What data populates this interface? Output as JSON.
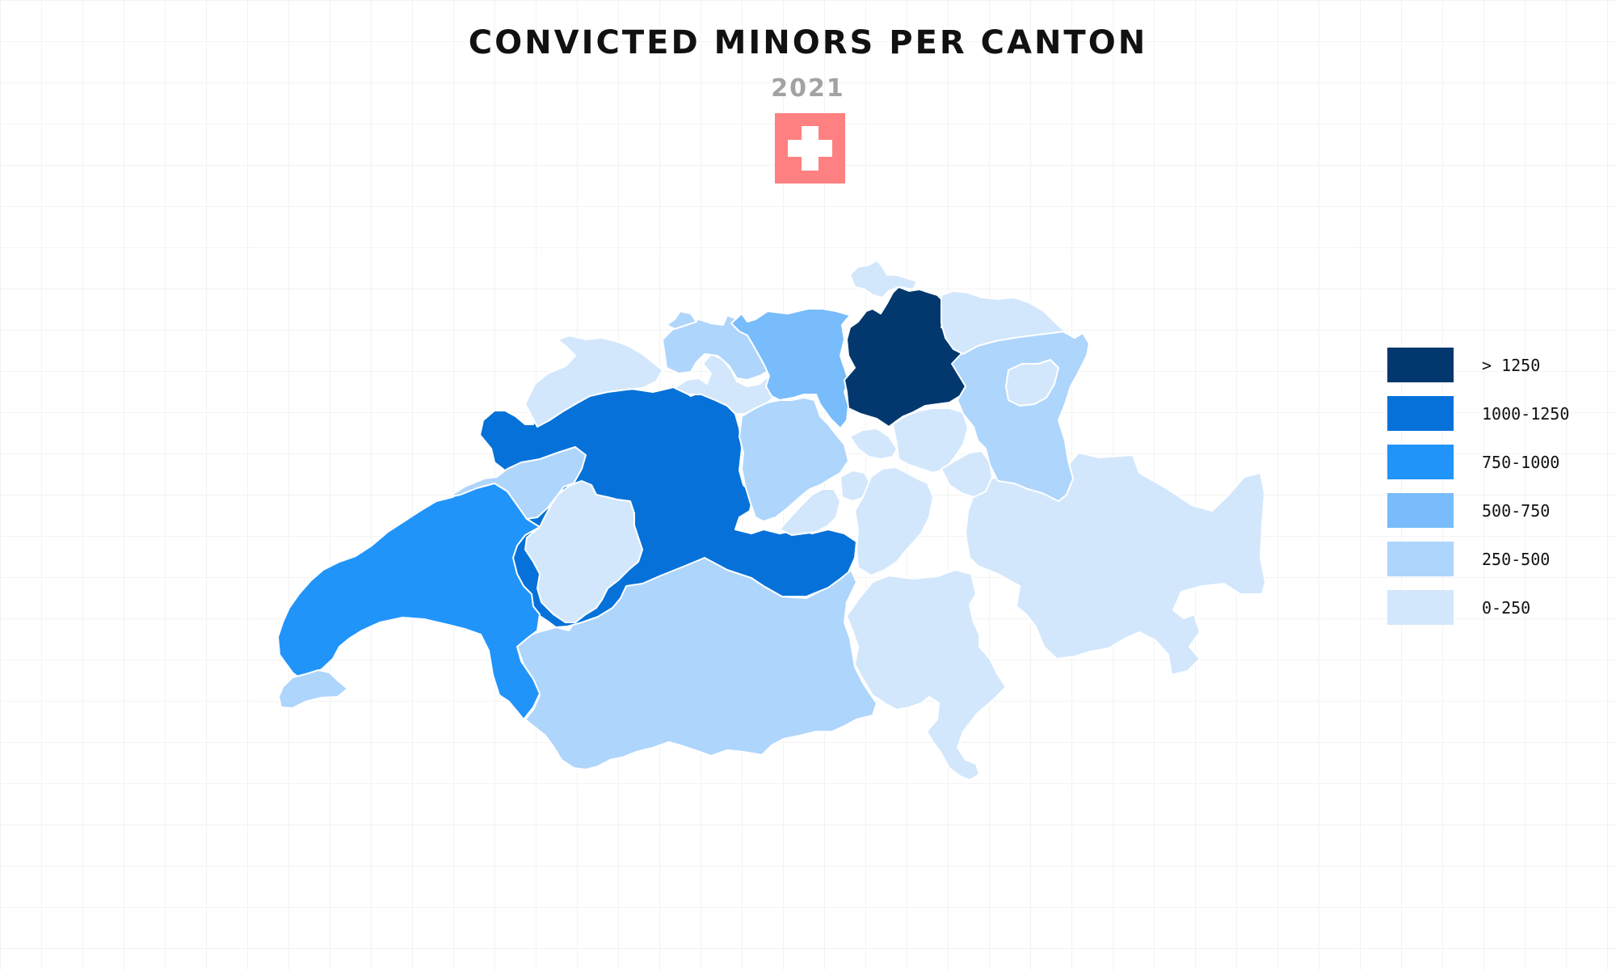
{
  "title": "CONVICTED MINORS PER CANTON",
  "subtitle": "2021",
  "flag": {
    "icon": "swiss-flag-icon",
    "color": "#ff8080",
    "cross_color": "#ffffff"
  },
  "legend": [
    {
      "label": "> 1250",
      "color": "#02386e"
    },
    {
      "label": "1000-1250",
      "color": "#0672d9"
    },
    {
      "label": "750-1000",
      "color": "#2194fa"
    },
    {
      "label": "500-750",
      "color": "#78bcfb"
    },
    {
      "label": "250-500",
      "color": "#aed5fc"
    },
    {
      "label": "0-250",
      "color": "#d2e7fc"
    }
  ],
  "regions": [
    {
      "name": "Zürich",
      "class": "> 1250"
    },
    {
      "name": "Bern",
      "class": "1000-1250"
    },
    {
      "name": "Vaud",
      "class": "750-1000"
    },
    {
      "name": "Aargau",
      "class": "500-750"
    },
    {
      "name": "Valais",
      "class": "250-500"
    },
    {
      "name": "St. Gallen",
      "class": "250-500"
    },
    {
      "name": "Neuchâtel",
      "class": "250-500"
    },
    {
      "name": "Basel-Landschaft",
      "class": "250-500"
    },
    {
      "name": "Lucerne",
      "class": "250-500"
    },
    {
      "name": "Geneva",
      "class": "250-500"
    },
    {
      "name": "Jura",
      "class": "0-250"
    },
    {
      "name": "Basel-Stadt",
      "class": "250-500"
    },
    {
      "name": "Solothurn",
      "class": "0-250"
    },
    {
      "name": "Fribourg",
      "class": "0-250"
    },
    {
      "name": "Schaffhausen",
      "class": "0-250"
    },
    {
      "name": "Thurgau",
      "class": "0-250"
    },
    {
      "name": "Appenzell",
      "class": "0-250"
    },
    {
      "name": "Zug",
      "class": "0-250"
    },
    {
      "name": "Schwyz",
      "class": "0-250"
    },
    {
      "name": "Obwalden",
      "class": "0-250"
    },
    {
      "name": "Nidwalden",
      "class": "0-250"
    },
    {
      "name": "Uri",
      "class": "0-250"
    },
    {
      "name": "Glarus",
      "class": "0-250"
    },
    {
      "name": "Graubünden",
      "class": "0-250"
    },
    {
      "name": "Ticino",
      "class": "0-250"
    }
  ]
}
